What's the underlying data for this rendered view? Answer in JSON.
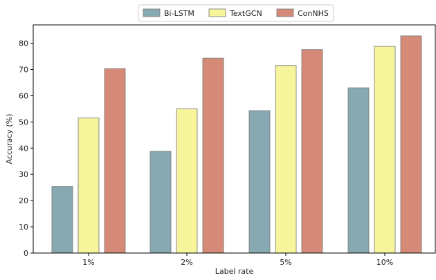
{
  "chart_data": {
    "type": "bar",
    "xlabel": "Label rate",
    "ylabel": "Accuracy (%)",
    "categories": [
      "1%",
      "2%",
      "5%",
      "10%"
    ],
    "ylim": [
      0,
      87
    ],
    "yticks": [
      0,
      10,
      20,
      30,
      40,
      50,
      60,
      70,
      80
    ],
    "grid": false,
    "legend_position": "top-center",
    "series": [
      {
        "name": "Bi-LSTM",
        "color": "#87a9b1",
        "values": [
          25.4,
          38.8,
          54.3,
          63.0
        ]
      },
      {
        "name": "TextGCN",
        "color": "#f7f59c",
        "values": [
          51.5,
          55.0,
          71.5,
          78.8
        ]
      },
      {
        "name": "ConNHS",
        "color": "#d48a77",
        "values": [
          70.3,
          74.3,
          77.6,
          82.8
        ]
      }
    ]
  }
}
